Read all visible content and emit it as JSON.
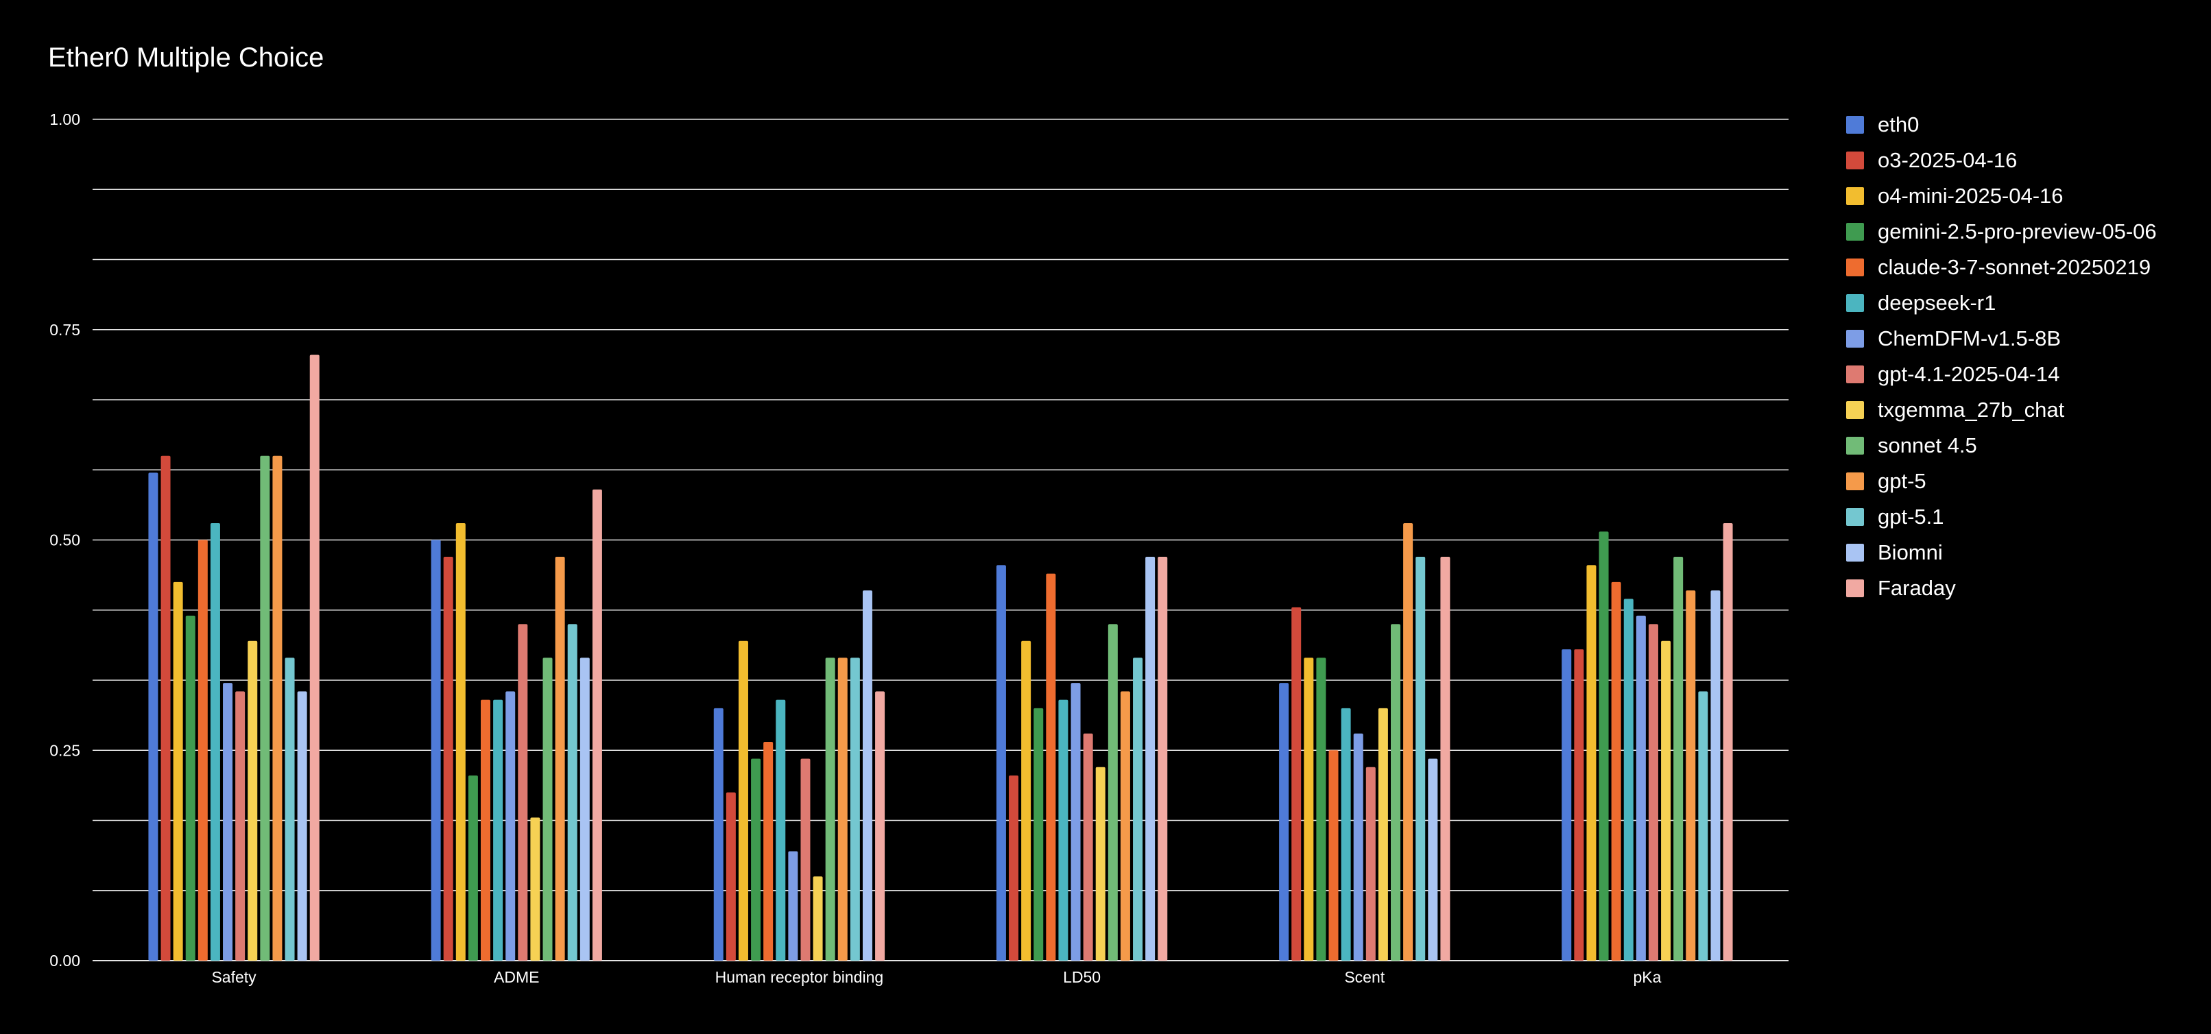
{
  "chart_data": {
    "type": "bar",
    "title": "Ether0 Multiple Choice",
    "xlabel": "",
    "ylabel": "",
    "ylim": [
      0,
      1
    ],
    "yticks": [
      "0.00",
      "0.25",
      "0.50",
      "0.75",
      "1.00"
    ],
    "grid": true,
    "legend_position": "right",
    "categories": [
      "Safety",
      "ADME",
      "Human receptor binding",
      "LD50",
      "Scent",
      "pKa"
    ],
    "series": [
      {
        "name": "eth0",
        "color": "#4f7bd8",
        "values": [
          0.58,
          0.5,
          0.3,
          0.47,
          0.33,
          0.37
        ]
      },
      {
        "name": "o3-2025-04-16",
        "color": "#d34a3b",
        "values": [
          0.6,
          0.48,
          0.2,
          0.22,
          0.42,
          0.37
        ]
      },
      {
        "name": "o4-mini-2025-04-16",
        "color": "#f2bd2f",
        "values": [
          0.45,
          0.52,
          0.38,
          0.38,
          0.36,
          0.47
        ]
      },
      {
        "name": "gemini-2.5-pro-preview-05-06",
        "color": "#3f9b50",
        "values": [
          0.41,
          0.22,
          0.24,
          0.3,
          0.36,
          0.51
        ]
      },
      {
        "name": "claude-3-7-sonnet-20250219",
        "color": "#ee6c2f",
        "values": [
          0.5,
          0.31,
          0.26,
          0.46,
          0.25,
          0.45
        ]
      },
      {
        "name": "deepseek-r1",
        "color": "#4bb5c0",
        "values": [
          0.52,
          0.31,
          0.31,
          0.31,
          0.3,
          0.43
        ]
      },
      {
        "name": "ChemDFM-v1.5-8B",
        "color": "#7d9de6",
        "values": [
          0.33,
          0.32,
          0.13,
          0.33,
          0.27,
          0.41
        ]
      },
      {
        "name": "gpt-4.1-2025-04-14",
        "color": "#de7a71",
        "values": [
          0.32,
          0.4,
          0.24,
          0.27,
          0.23,
          0.4
        ]
      },
      {
        "name": "txgemma_27b_chat",
        "color": "#f6d154",
        "values": [
          0.38,
          0.17,
          0.1,
          0.23,
          0.3,
          0.38
        ]
      },
      {
        "name": "sonnet 4.5",
        "color": "#71bb77",
        "values": [
          0.6,
          0.36,
          0.36,
          0.4,
          0.4,
          0.48
        ]
      },
      {
        "name": "gpt-5",
        "color": "#f59a4a",
        "values": [
          0.6,
          0.48,
          0.36,
          0.32,
          0.52,
          0.44
        ]
      },
      {
        "name": "gpt-5.1",
        "color": "#74c7d0",
        "values": [
          0.36,
          0.4,
          0.36,
          0.36,
          0.48,
          0.32
        ]
      },
      {
        "name": "Biomni",
        "color": "#a9c4f3",
        "values": [
          0.32,
          0.36,
          0.44,
          0.48,
          0.24,
          0.44
        ]
      },
      {
        "name": "Faraday",
        "color": "#f1a9a2",
        "values": [
          0.72,
          0.56,
          0.32,
          0.48,
          0.48,
          0.52
        ]
      }
    ]
  },
  "colors": {
    "background": "#000000",
    "text": "#ffffff",
    "grid": "#e6e6e6"
  }
}
